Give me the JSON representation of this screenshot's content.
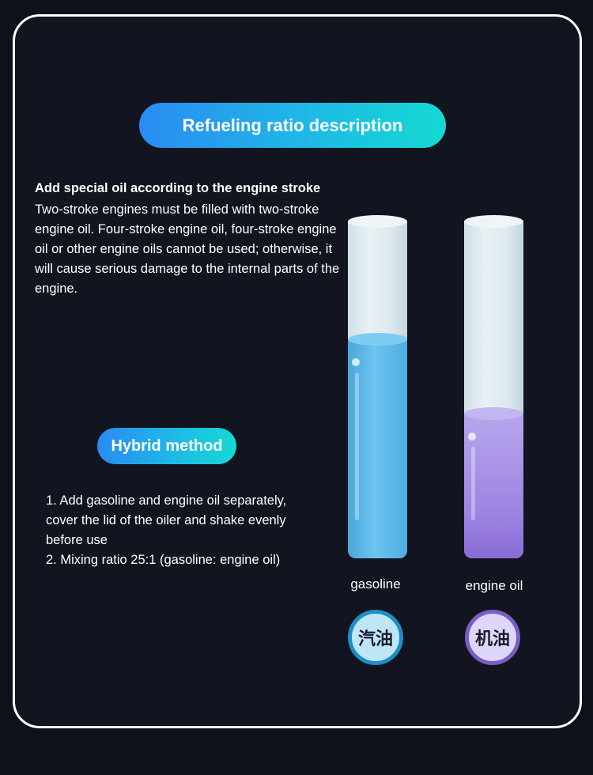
{
  "header": {
    "title": "Refueling ratio description"
  },
  "intro": {
    "heading": "Add special oil according to the engine stroke",
    "body": "Two-stroke engines must be filled with two-stroke engine oil. Four-stroke engine oil, four-stroke engine oil or other engine oils cannot be used; otherwise, it will cause serious damage to the internal parts of the engine."
  },
  "hybrid": {
    "title": "Hybrid method",
    "steps": [
      "1. Add gasoline and engine oil separately,\ncover the lid of the oiler and shake evenly\nbefore use",
      "2. Mixing ratio 25:1 (gasoline: engine oil)"
    ]
  },
  "tubes": [
    {
      "label": "gasoline",
      "badge": "汽油",
      "fill_fraction": 0.65,
      "color": "#5ab6e6"
    },
    {
      "label": "engine oil",
      "badge": "机油",
      "fill_fraction": 0.43,
      "color": "#9c83e2"
    }
  ]
}
